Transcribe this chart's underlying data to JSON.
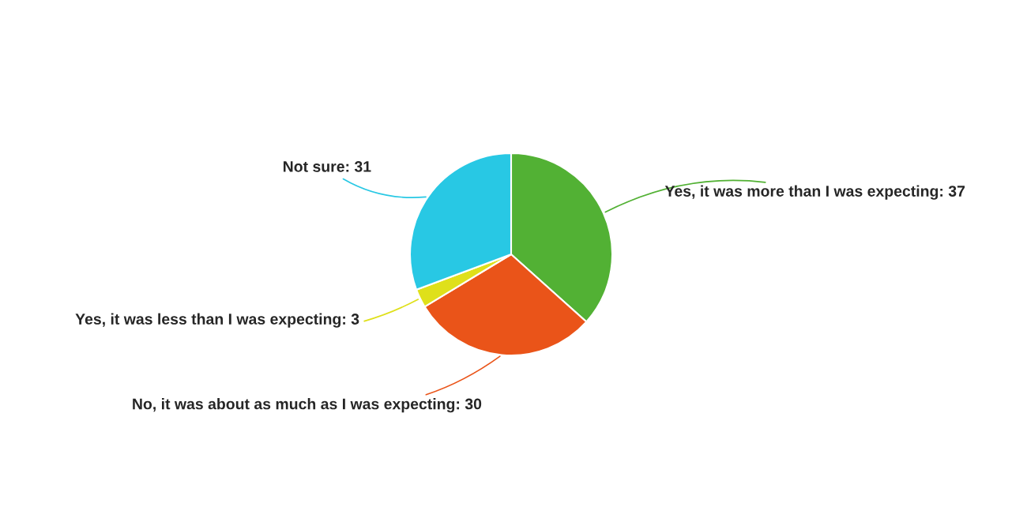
{
  "chart_data": {
    "type": "pie",
    "categories": [
      "Yes, it was more than I was expecting: 37",
      "No, it was about as much as I was expecting: 30",
      "Yes, it was less than I was expecting: 3",
      "Not sure: 31"
    ],
    "values": [
      37,
      30,
      3,
      31
    ],
    "colors": [
      "#52b134",
      "#ea5419",
      "#dfe01a",
      "#28c8e4"
    ],
    "legend": false
  }
}
